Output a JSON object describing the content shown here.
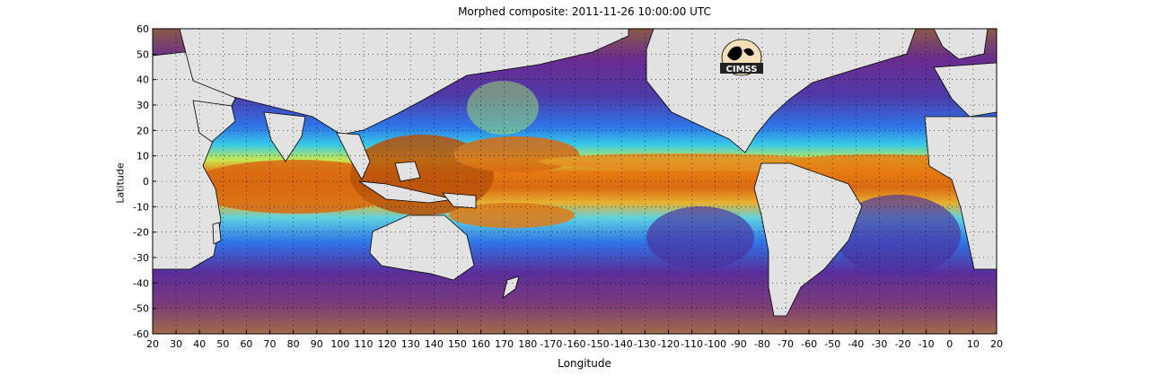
{
  "figure": {
    "title": "Morphed composite: 2011-11-26 10:00:00 UTC",
    "xlabel": "Longitude",
    "ylabel": "Latitude",
    "logo_text": "CIMSS"
  },
  "axes": {
    "x_ticks": [
      "20",
      "30",
      "40",
      "50",
      "60",
      "70",
      "80",
      "90",
      "100",
      "110",
      "120",
      "130",
      "140",
      "150",
      "160",
      "170",
      "180",
      "-170",
      "-160",
      "-150",
      "-140",
      "-130",
      "-120",
      "-110",
      "-100",
      "-90",
      "-80",
      "-70",
      "-60",
      "-50",
      "-40",
      "-30",
      "-20",
      "-10",
      "0",
      "10",
      "20"
    ],
    "y_ticks": [
      "60",
      "50",
      "40",
      "30",
      "20",
      "10",
      "0",
      "-10",
      "-20",
      "-30",
      "-40",
      "-50",
      "-60"
    ],
    "lon_range": [
      20,
      380
    ],
    "lat_range": [
      -60,
      60
    ],
    "grid": "dotted"
  },
  "colors": {
    "land": "#e2e2e2",
    "dry_brown": "#a06a4a",
    "purple": "#6a2c8e",
    "blue": "#2f74e8",
    "cyan": "#36c9e8",
    "green": "#9fe86a",
    "yellow": "#f0e040",
    "orange": "#e67a12",
    "dark_orange": "#b8520a"
  }
}
